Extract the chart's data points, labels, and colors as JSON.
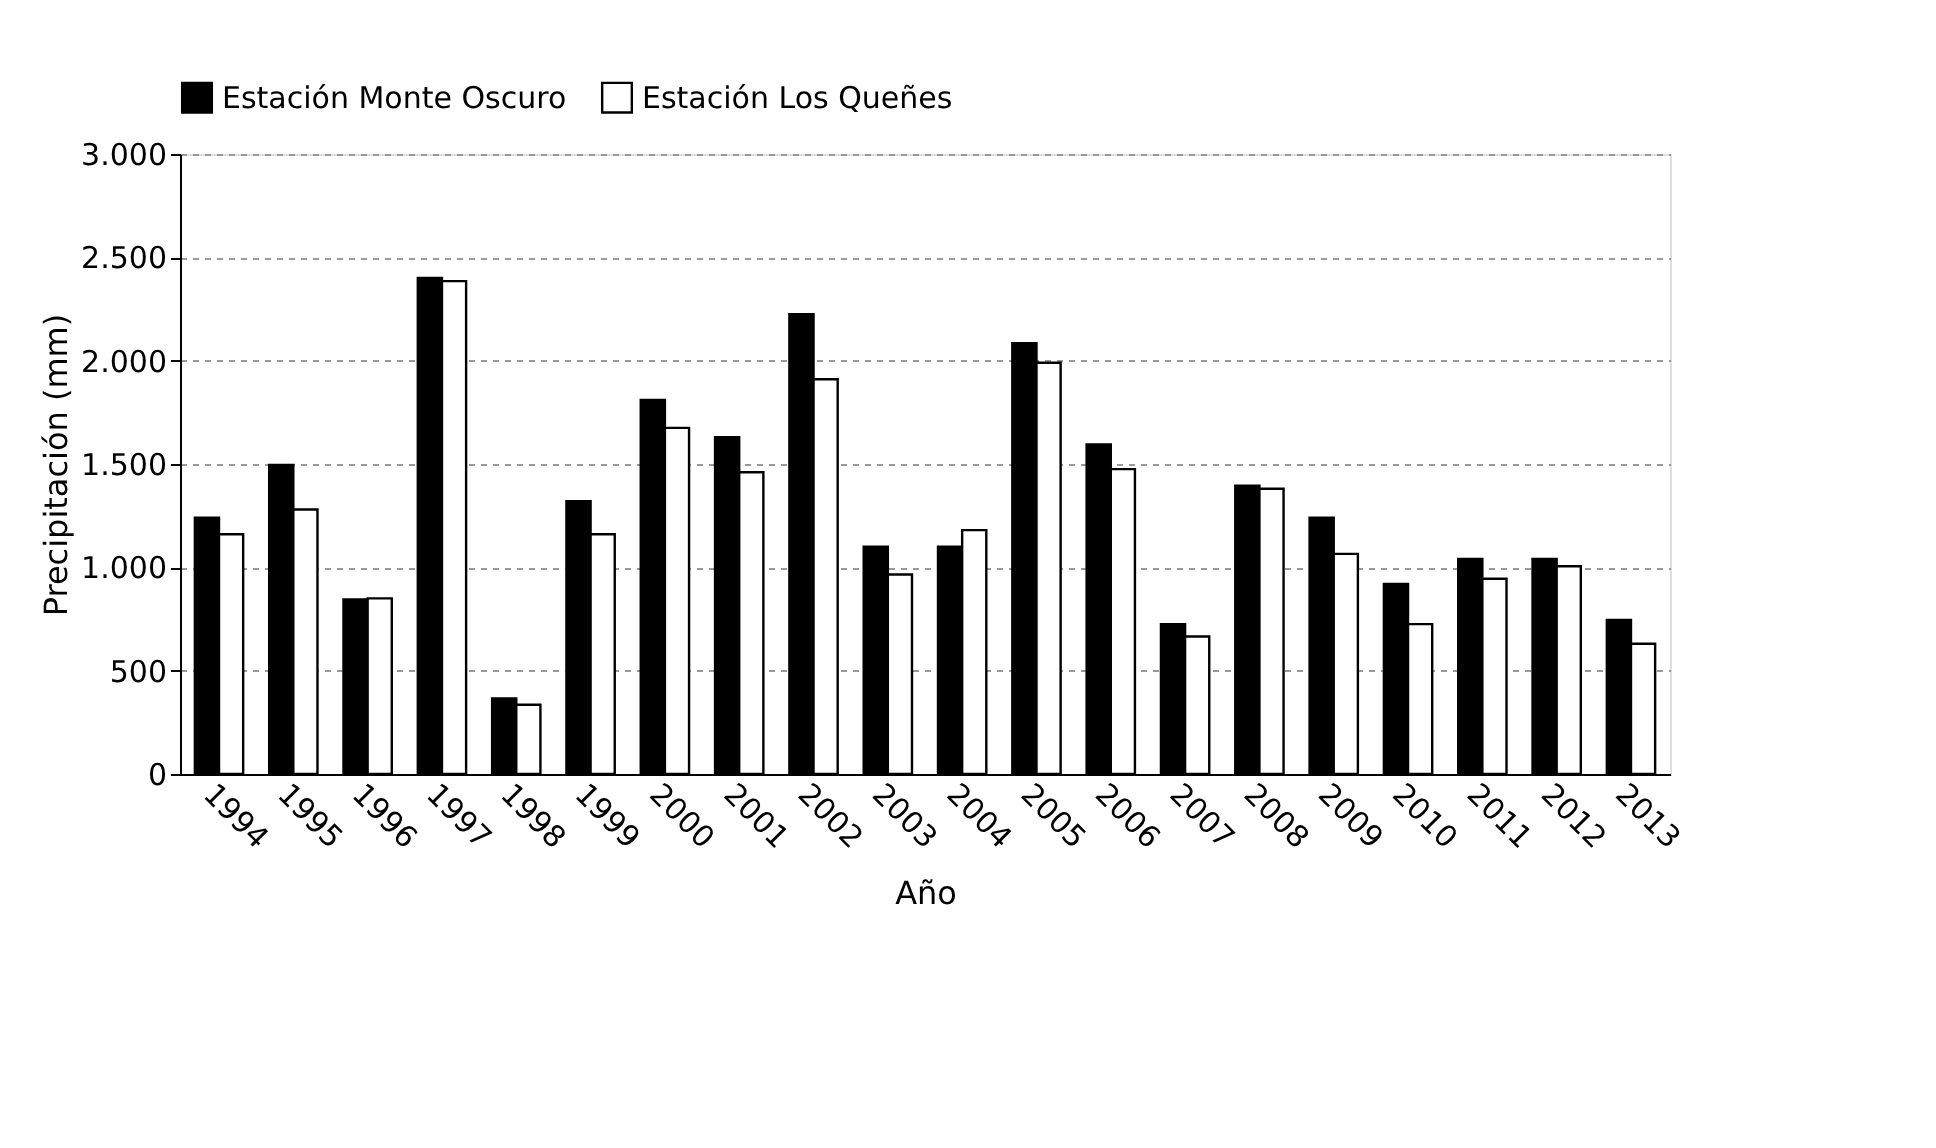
{
  "chart_data": {
    "type": "bar",
    "xlabel": "Año",
    "ylabel": "Precipitación (mm)",
    "categories": [
      "1994",
      "1995",
      "1996",
      "1997",
      "1998",
      "1999",
      "2000",
      "2001",
      "2002",
      "2003",
      "2004",
      "2005",
      "2006",
      "2007",
      "2008",
      "2009",
      "2010",
      "2011",
      "2012",
      "2013"
    ],
    "series": [
      {
        "name": "Estación Monte Oscuro",
        "color": "#000000",
        "values": [
          1240,
          1495,
          845,
          2400,
          365,
          1320,
          1810,
          1630,
          2225,
          1100,
          1100,
          2085,
          1595,
          725,
          1395,
          1240,
          920,
          1040,
          1040,
          745
        ]
      },
      {
        "name": "Estación Los Queñes",
        "color": "#ffffff",
        "values": [
          1160,
          1280,
          850,
          2385,
          335,
          1160,
          1675,
          1460,
          1910,
          965,
          1180,
          1990,
          1475,
          665,
          1380,
          1065,
          725,
          945,
          1005,
          630
        ]
      }
    ],
    "ylim": [
      0,
      3000
    ],
    "yticks": [
      0,
      500,
      {
        "value": 1000,
        "label": "1.000"
      },
      {
        "value": 1500,
        "label": "1.500"
      },
      {
        "value": 2000,
        "label": "2.000"
      },
      {
        "value": 2500,
        "label": "2.500"
      },
      {
        "value": 3000,
        "label": "3.000"
      }
    ],
    "grid": "y",
    "legend": "top"
  }
}
